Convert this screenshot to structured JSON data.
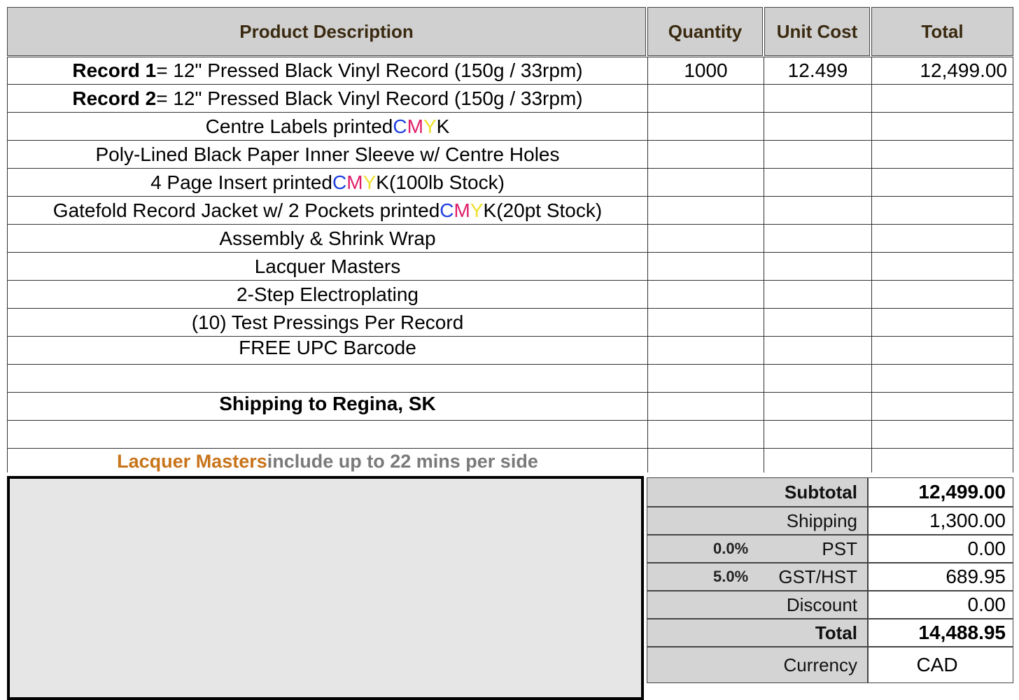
{
  "header": {
    "description": "Product Description",
    "quantity": "Quantity",
    "unit_cost": "Unit Cost",
    "total": "Total"
  },
  "items": [
    {
      "label_bold": "Record 1",
      "label_rest": " = 12\" Pressed Black Vinyl Record (150g / 33rpm)",
      "quantity": "1000",
      "unit_cost": "12.499",
      "total": "12,499.00"
    },
    {
      "label_bold": "Record 2",
      "label_rest": " = 12\" Pressed Black Vinyl Record (150g / 33rpm)"
    },
    {
      "pre": "Centre Labels printed ",
      "cmyk": [
        "C",
        "M",
        "Y",
        "K"
      ],
      "post": ""
    },
    {
      "text": "Poly-Lined Black Paper Inner Sleeve w/ Centre Holes"
    },
    {
      "pre": "4 Page Insert printed ",
      "cmyk": [
        "C",
        "M",
        "Y",
        "K"
      ],
      "post": " (100lb Stock)"
    },
    {
      "pre": "Gatefold Record Jacket w/ 2 Pockets printed ",
      "cmyk": [
        "C",
        "M",
        "Y",
        "K"
      ],
      "post": " (20pt Stock)"
    },
    {
      "text": "Assembly & Shrink Wrap"
    },
    {
      "text": "Lacquer Masters"
    },
    {
      "text": "2-Step Electroplating"
    },
    {
      "text": "(10) Test Pressings Per Record"
    },
    {
      "text": "FREE UPC Barcode"
    },
    {
      "text": ""
    },
    {
      "text_bold": "Shipping to Regina, SK"
    },
    {
      "text": ""
    }
  ],
  "note": {
    "highlight": "Lacquer Masters",
    "rest": " include up to 22 mins per side"
  },
  "summary": {
    "subtotal_label": "Subtotal",
    "subtotal": "12,499.00",
    "shipping_label": "Shipping",
    "shipping": "1,300.00",
    "pst_rate": "0.0%",
    "pst_label": "PST",
    "pst": "0.00",
    "gst_rate": "5.0%",
    "gst_label": "GST/HST",
    "gst": "689.95",
    "discount_label": "Discount",
    "discount": "0.00",
    "total_label": "Total",
    "total": "14,488.95",
    "currency_label": "Currency",
    "currency": "CAD"
  },
  "colors": {
    "cyan": "#1e3fe0",
    "magenta": "#e01e6a",
    "yellow": "#f0e030",
    "note_orange": "#c8741a",
    "header_bg": "#d0d0d0"
  }
}
